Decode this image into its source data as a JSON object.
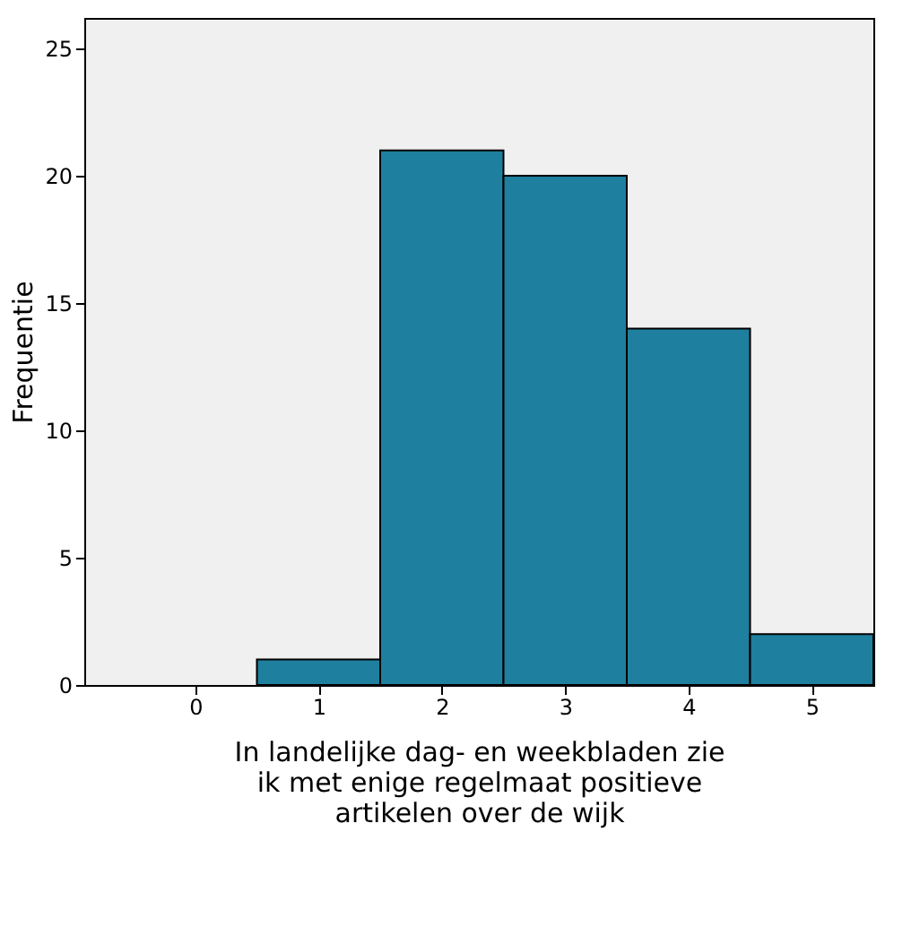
{
  "chart_data": {
    "type": "histogram",
    "xlabel": "In landelijke dag- en weekbladen zie ik met enige regelmaat positieve artikelen over de wijk",
    "ylabel": "Frequentie",
    "bins": [
      -0.5,
      0.5,
      1.5,
      2.5,
      3.5,
      4.5,
      5.5
    ],
    "values": [
      0,
      1,
      21,
      20,
      14,
      2
    ],
    "color": "#1f7f9e",
    "xlim": [
      -0.9,
      5.5
    ],
    "xticks": [
      0,
      1,
      2,
      3,
      4,
      5
    ],
    "ylim": [
      0,
      26.2
    ],
    "yticks": [
      0,
      5,
      10,
      15,
      20,
      25
    ],
    "grid": false
  }
}
